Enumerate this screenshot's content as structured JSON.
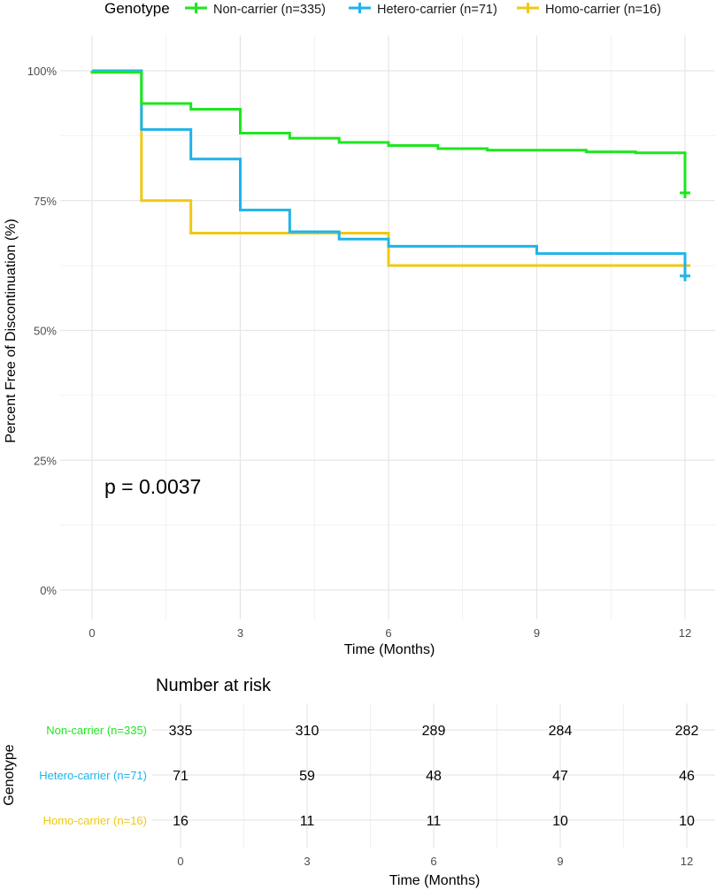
{
  "legend": {
    "title": "Genotype",
    "entries": [
      "Non-carrier (n=335)",
      "Hetero-carrier (n=71)",
      "Homo-carrier (n=16)"
    ]
  },
  "colors": {
    "non": "#1ee61e",
    "hetero": "#1eb4ea",
    "homo": "#f0c814",
    "grid": "#e6e6e6"
  },
  "pvalue": "p = 0.0037",
  "chart_data": [
    {
      "type": "line",
      "subtype": "kaplan-meier step",
      "title": "",
      "xlabel": "Time (Months)",
      "ylabel": "Percent Free of Discontinuation (%)",
      "xlim": [
        0,
        12
      ],
      "ylim": [
        0,
        100
      ],
      "x_ticks": [
        "0",
        "3",
        "6",
        "9",
        "12"
      ],
      "y_ticks": [
        "0%",
        "25%",
        "50%",
        "75%",
        "100%"
      ],
      "legend_position": "top",
      "annotation": "p = 0.0037",
      "series": [
        {
          "name": "Non-carrier (n=335)",
          "color_key": "non",
          "steps": [
            [
              0,
              100
            ],
            [
              0,
              99.7
            ],
            [
              1,
              93.7
            ],
            [
              2,
              92.6
            ],
            [
              3,
              88.0
            ],
            [
              4,
              87.0
            ],
            [
              5,
              86.2
            ],
            [
              6,
              85.6
            ],
            [
              7,
              85.0
            ],
            [
              8,
              84.7
            ],
            [
              10,
              84.4
            ],
            [
              11,
              84.2
            ],
            [
              12,
              84.2
            ],
            [
              12,
              76.0
            ]
          ],
          "censor": [
            [
              12,
              76.5
            ]
          ]
        },
        {
          "name": "Hetero-carrier (n=71)",
          "color_key": "hetero",
          "steps": [
            [
              0,
              100
            ],
            [
              1,
              88.7
            ],
            [
              2,
              83.0
            ],
            [
              3,
              73.2
            ],
            [
              4,
              69.0
            ],
            [
              5,
              67.6
            ],
            [
              6,
              66.2
            ],
            [
              9,
              64.8
            ],
            [
              12,
              64.8
            ],
            [
              12,
              60.0
            ]
          ],
          "censor": [
            [
              12,
              60.5
            ]
          ]
        },
        {
          "name": "Homo-carrier (n=16)",
          "color_key": "homo",
          "steps": [
            [
              0,
              100
            ],
            [
              1,
              75.0
            ],
            [
              2,
              68.75
            ],
            [
              6,
              62.5
            ],
            [
              12,
              62.5
            ]
          ],
          "censor": [
            [
              12,
              62.5
            ]
          ]
        }
      ]
    },
    {
      "type": "table",
      "title": "Number at risk",
      "xlabel": "Time (Months)",
      "ylabel": "Genotype",
      "times": [
        0,
        3,
        6,
        9,
        12
      ],
      "time_labels": [
        "0",
        "3",
        "6",
        "9",
        "12"
      ],
      "rows": [
        {
          "name": "Non-carrier (n=335)",
          "color_key": "non",
          "values": [
            335,
            310,
            289,
            284,
            282
          ]
        },
        {
          "name": "Hetero-carrier (n=71)",
          "color_key": "hetero",
          "values": [
            71,
            59,
            48,
            47,
            46
          ]
        },
        {
          "name": "Homo-carrier (n=16)",
          "color_key": "homo",
          "values": [
            16,
            11,
            11,
            10,
            10
          ]
        }
      ]
    }
  ]
}
